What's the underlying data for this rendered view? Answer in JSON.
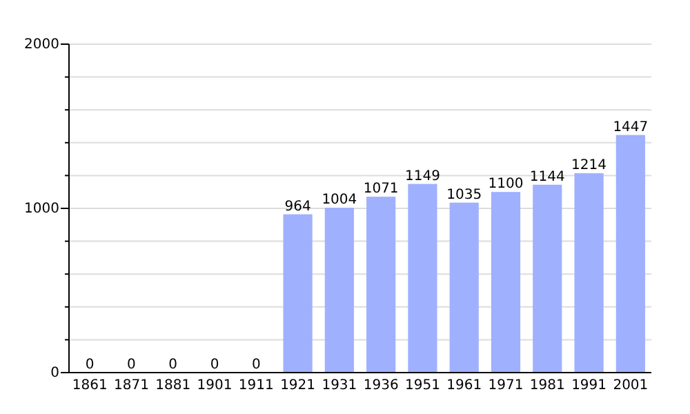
{
  "chart_data": {
    "type": "bar",
    "categories": [
      "1861",
      "1871",
      "1881",
      "1901",
      "1911",
      "1921",
      "1931",
      "1936",
      "1951",
      "1961",
      "1971",
      "1981",
      "1991",
      "2001"
    ],
    "values": [
      0,
      0,
      0,
      0,
      0,
      964,
      1004,
      1071,
      1149,
      1035,
      1100,
      1144,
      1214,
      1447
    ],
    "color": "#9fb0ff",
    "ylim": [
      0,
      2000
    ],
    "yticks": [
      0,
      {
        "value": 200,
        "label": null
      },
      {
        "value": 400,
        "label": null
      },
      {
        "value": 600,
        "label": null
      },
      {
        "value": 800,
        "label": null
      },
      1000,
      {
        "value": 1200,
        "label": null
      },
      {
        "value": 1400,
        "label": null
      },
      {
        "value": 1600,
        "label": null
      },
      {
        "value": 1800,
        "label": null
      },
      2000
    ],
    "grid": "y",
    "data_labels": true
  }
}
